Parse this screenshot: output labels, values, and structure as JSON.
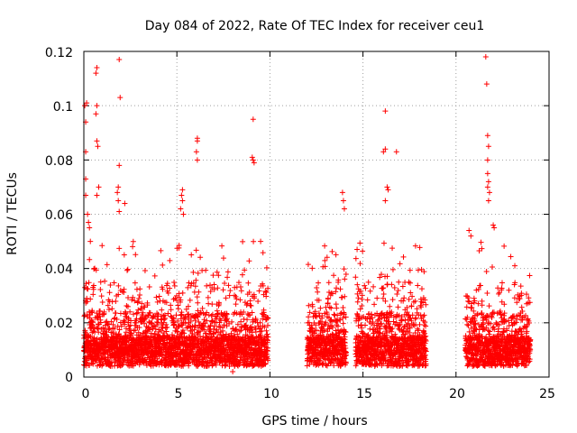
{
  "chart_data": {
    "type": "scatter",
    "title": "Day 084 of 2022, Rate Of TEC Index for receiver ceu1",
    "xlabel": "GPS time / hours",
    "ylabel": "ROTI / TECUs",
    "xlim": [
      0,
      25
    ],
    "ylim": [
      0,
      0.12
    ],
    "grid": true,
    "marker": "+",
    "x_ticks": [
      "0",
      "5",
      "10",
      "15",
      "20",
      "25"
    ],
    "y_ticks": [
      "0",
      "0.02",
      "0.04",
      "0.06",
      "0.08",
      "0.1",
      "0.12"
    ],
    "series": [
      {
        "color": "#ff0000",
        "data_segments": [
          {
            "x_start": 0.0,
            "x_end": 9.9
          },
          {
            "x_start": 12.0,
            "x_end": 14.1
          },
          {
            "x_start": 14.6,
            "x_end": 18.4
          },
          {
            "x_start": 20.5,
            "x_end": 24.0
          }
        ],
        "points": [
          [
            0.05,
            0.1
          ],
          [
            0.15,
            0.101
          ],
          [
            0.1,
            0.094
          ],
          [
            0.1,
            0.083
          ],
          [
            0.1,
            0.073
          ],
          [
            0.1,
            0.067
          ],
          [
            0.2,
            0.06
          ],
          [
            0.25,
            0.057
          ],
          [
            0.3,
            0.055
          ],
          [
            0.35,
            0.05
          ],
          [
            0.7,
            0.114
          ],
          [
            0.65,
            0.112
          ],
          [
            0.7,
            0.1
          ],
          [
            0.65,
            0.097
          ],
          [
            0.7,
            0.087
          ],
          [
            0.75,
            0.085
          ],
          [
            0.8,
            0.07
          ],
          [
            0.7,
            0.067
          ],
          [
            1.9,
            0.117
          ],
          [
            1.95,
            0.103
          ],
          [
            1.9,
            0.078
          ],
          [
            1.85,
            0.07
          ],
          [
            1.8,
            0.068
          ],
          [
            1.85,
            0.065
          ],
          [
            1.9,
            0.061
          ],
          [
            2.2,
            0.064
          ],
          [
            5.3,
            0.069
          ],
          [
            5.25,
            0.067
          ],
          [
            5.3,
            0.065
          ],
          [
            5.2,
            0.062
          ],
          [
            5.35,
            0.06
          ],
          [
            6.1,
            0.088
          ],
          [
            6.1,
            0.087
          ],
          [
            6.05,
            0.083
          ],
          [
            6.1,
            0.08
          ],
          [
            9.1,
            0.095
          ],
          [
            9.05,
            0.081
          ],
          [
            9.1,
            0.08
          ],
          [
            9.15,
            0.079
          ],
          [
            9.5,
            0.05
          ],
          [
            13.9,
            0.068
          ],
          [
            13.95,
            0.065
          ],
          [
            14.0,
            0.062
          ],
          [
            16.2,
            0.098
          ],
          [
            16.2,
            0.084
          ],
          [
            16.1,
            0.083
          ],
          [
            16.3,
            0.07
          ],
          [
            16.35,
            0.069
          ],
          [
            16.8,
            0.083
          ],
          [
            16.2,
            0.065
          ],
          [
            21.6,
            0.118
          ],
          [
            21.65,
            0.108
          ],
          [
            21.7,
            0.089
          ],
          [
            21.75,
            0.085
          ],
          [
            21.7,
            0.08
          ],
          [
            21.7,
            0.075
          ],
          [
            21.75,
            0.072
          ],
          [
            21.7,
            0.07
          ],
          [
            21.8,
            0.068
          ],
          [
            21.75,
            0.065
          ],
          [
            22.0,
            0.056
          ],
          [
            22.05,
            0.055
          ],
          [
            20.7,
            0.054
          ],
          [
            20.8,
            0.052
          ],
          [
            8.0,
            0.002
          ],
          [
            8.1,
            0.004
          ]
        ]
      }
    ]
  }
}
